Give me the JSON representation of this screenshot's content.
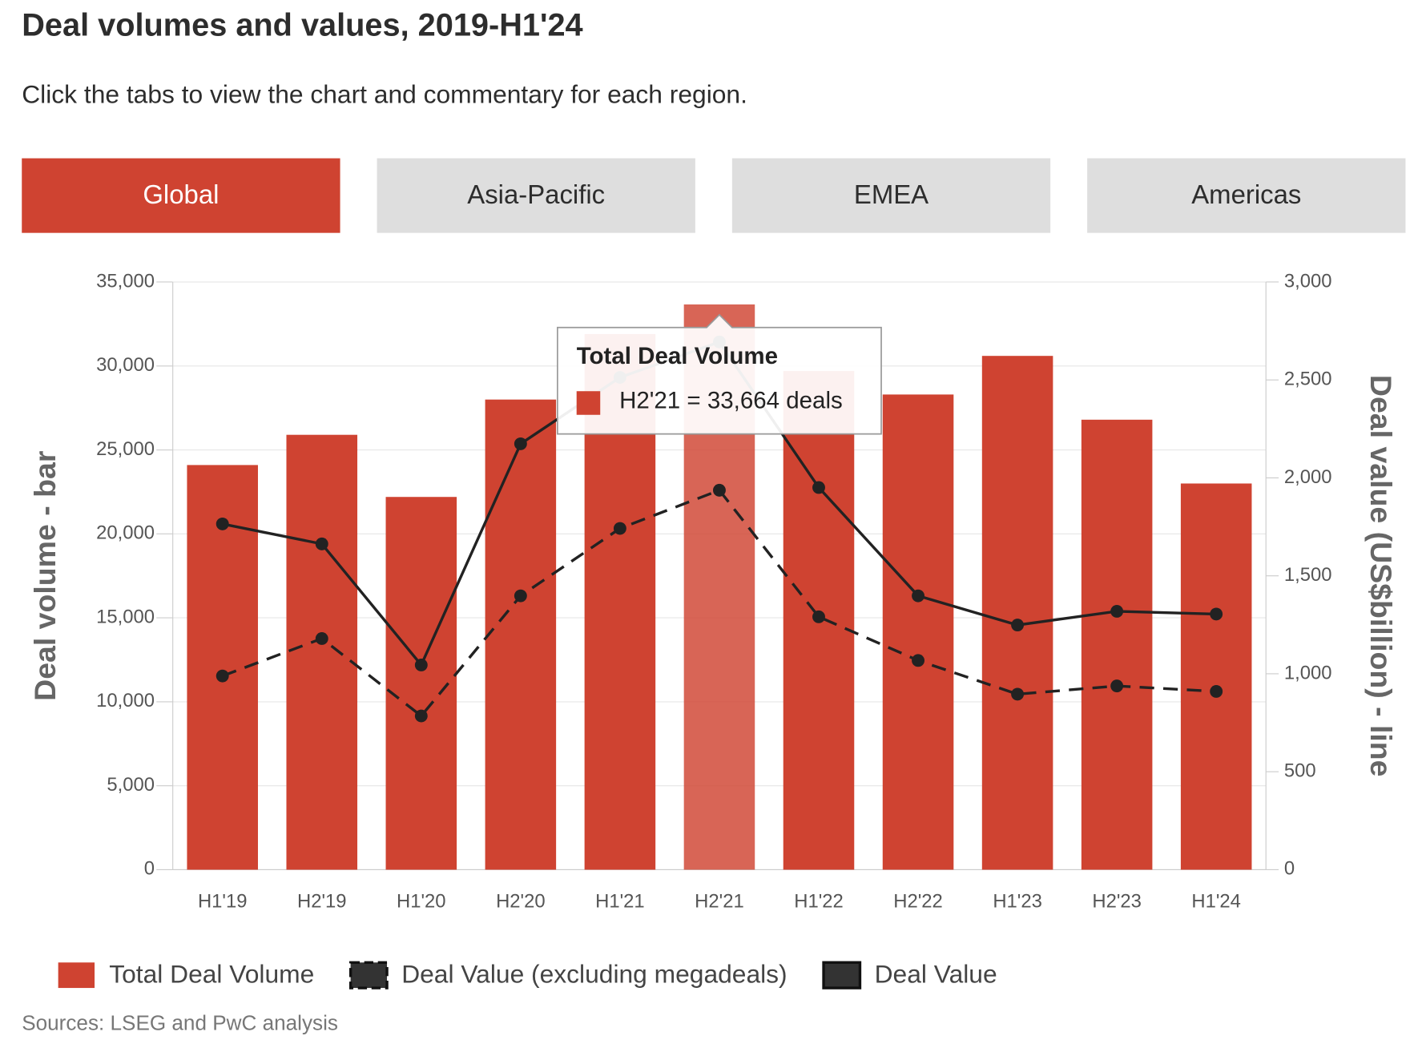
{
  "title": "Deal volumes and values, 2019-H1'24",
  "subtitle": "Click the tabs to view the chart and commentary for each region.",
  "tabs": [
    "Global",
    "Asia-Pacific",
    "EMEA",
    "Americas"
  ],
  "source": "Sources: LSEG and PwC analysis",
  "chart_data": {
    "type": "bar_line",
    "y_label": "Deal volume - bar",
    "y2_label": "Deal value (US$billion) - line",
    "categories": [
      "H1'19",
      "H2'19",
      "H1'20",
      "H2'20",
      "H1'21",
      "H2'21",
      "H1'22",
      "H2'22",
      "H1'23",
      "H2'23",
      "H1'24"
    ],
    "series": [
      {
        "name": "Total Deal Volume",
        "type": "bar",
        "color": "#cf4331",
        "values": [
          24100,
          25900,
          22200,
          28000,
          31900,
          33664,
          29700,
          28300,
          30600,
          26800,
          23000
        ]
      },
      {
        "name": "Deal Value (excluding megadeals)",
        "type": "line",
        "dashed": true,
        "axis": "y2",
        "color": "#222222",
        "values": [
          989,
          1180,
          785,
          1398,
          1742,
          1937,
          1291,
          1068,
          896,
          938,
          910
        ]
      },
      {
        "name": "Deal Value",
        "type": "line",
        "dashed": false,
        "axis": "y2",
        "color": "#222222",
        "values": [
          1765,
          1663,
          1045,
          2174,
          2513,
          2694,
          1951,
          1398,
          1249,
          1319,
          1305
        ]
      }
    ],
    "ylim": [
      0,
      35000
    ],
    "yticks": [
      0,
      {
        "value": 5000,
        "label": "5,000"
      },
      {
        "value": 10000,
        "label": "10,000"
      },
      {
        "value": 15000,
        "label": "15,000"
      },
      {
        "value": 20000,
        "label": "20,000"
      },
      {
        "value": 25000,
        "label": "25,000"
      },
      {
        "value": 30000,
        "label": "30,000"
      },
      {
        "value": 35000,
        "label": "35,000"
      }
    ],
    "y2lim": [
      0,
      3000
    ],
    "y2ticks": [
      0,
      500,
      {
        "value": 1000,
        "label": "1,000"
      },
      {
        "value": 1500,
        "label": "1,500"
      },
      {
        "value": 2000,
        "label": "2,000"
      },
      {
        "value": 2500,
        "label": "2,500"
      },
      {
        "value": 3000,
        "label": "3,000"
      }
    ],
    "grid": true,
    "legend": "bottom",
    "highlight": "H2'21",
    "tooltip": {
      "title": "Total Deal Volume",
      "text": "H2'21 = 33,664 deals"
    }
  }
}
